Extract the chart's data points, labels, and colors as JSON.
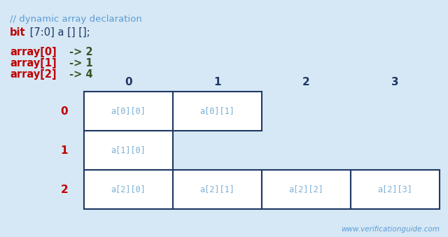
{
  "bg_color": "#d6e8f5",
  "title_comment": "// dynamic array declaration",
  "comment_color": "#5b9bd5",
  "keyword_color": "#c00000",
  "keyword": "bit",
  "code_rest": " [7:0] a [] [];",
  "code_color": "#1f3864",
  "array_sizes": [
    {
      "label": "array[0]",
      "arrow": " -> 2"
    },
    {
      "label": "array[1]",
      "arrow": " -> 1"
    },
    {
      "label": "array[2]",
      "arrow": " -> 4"
    }
  ],
  "array_label_color": "#c00000",
  "arrow_color": "#375623",
  "col_headers": [
    "0",
    "1",
    "2",
    "3"
  ],
  "col_header_color": "#1f3864",
  "row_headers": [
    "0",
    "1",
    "2"
  ],
  "row_header_color": "#c00000",
  "cells": [
    {
      "row": 0,
      "cols": 2,
      "labels": [
        "a[0][0]",
        "a[0][1]"
      ]
    },
    {
      "row": 1,
      "cols": 1,
      "labels": [
        "a[1][0]"
      ]
    },
    {
      "row": 2,
      "cols": 4,
      "labels": [
        "a[2][0]",
        "a[2][1]",
        "a[2][2]",
        "a[2][3]"
      ]
    }
  ],
  "cell_text_color": "#7bafd4",
  "cell_bg_color": "#ffffff",
  "cell_border_color": "#1f3864",
  "watermark": "www.verificationguide.com",
  "watermark_color": "#5b9bd5",
  "fig_width": 6.4,
  "fig_height": 3.39,
  "dpi": 100
}
